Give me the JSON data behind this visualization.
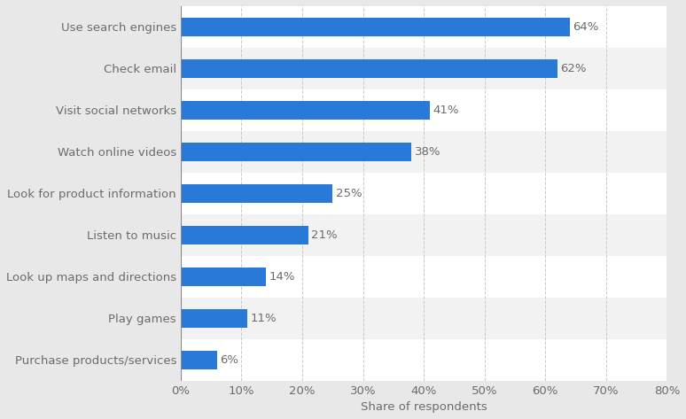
{
  "categories": [
    "Purchase products/services",
    "Play games",
    "Look up maps and directions",
    "Listen to music",
    "Look for product information",
    "Watch online videos",
    "Visit social networks",
    "Check email",
    "Use search engines"
  ],
  "values": [
    6,
    11,
    14,
    21,
    25,
    38,
    41,
    62,
    64
  ],
  "bar_color": "#2979d9",
  "outer_bg_color": "#e8e8e8",
  "plot_bg_color": "#ffffff",
  "xlabel": "Share of respondents",
  "xlim": [
    0,
    80
  ],
  "xtick_values": [
    0,
    10,
    20,
    30,
    40,
    50,
    60,
    70,
    80
  ],
  "grid_color": "#c8c8c8",
  "label_color": "#6b6b6b",
  "value_label_color": "#6b6b6b",
  "bar_height": 0.45,
  "fontsize_labels": 9.5,
  "fontsize_values": 9.5,
  "fontsize_xlabel": 9.5,
  "row_bg_even": "#f2f2f2",
  "row_bg_odd": "#ffffff"
}
